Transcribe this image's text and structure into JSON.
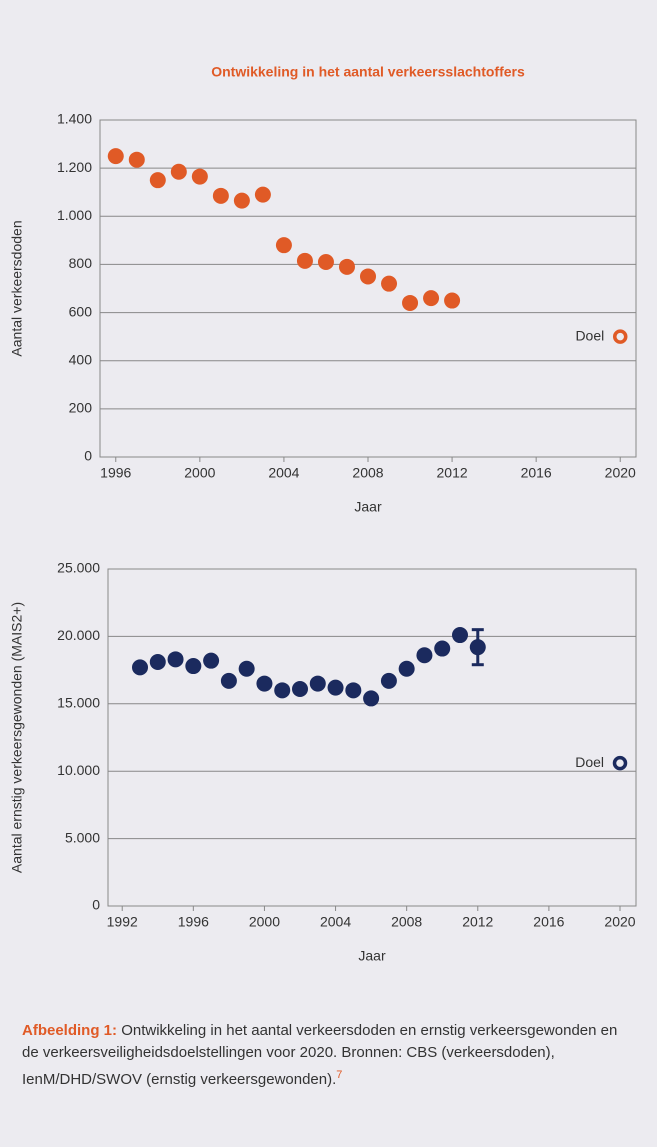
{
  "chart_data": [
    {
      "type": "scatter",
      "title": "Ontwikkeling in het aantal verkeersslachtoffers",
      "ylabel": "Aantal verkeersdoden",
      "xlabel": "Jaar",
      "x": [
        1996,
        1997,
        1998,
        1999,
        2000,
        2001,
        2002,
        2003,
        2004,
        2005,
        2006,
        2007,
        2008,
        2009,
        2010,
        2011,
        2012
      ],
      "values": [
        1250,
        1235,
        1150,
        1185,
        1165,
        1085,
        1065,
        1090,
        880,
        815,
        810,
        790,
        750,
        720,
        640,
        660,
        650
      ],
      "color": "#e05a26",
      "target": {
        "label": "Doel",
        "x": 2020,
        "value": 500
      },
      "xlim": [
        1995.25,
        2020.75
      ],
      "xticks": [
        1996,
        2000,
        2004,
        2008,
        2012,
        2016,
        2020
      ],
      "ylim": [
        0,
        1400
      ],
      "yticks": [
        0,
        200,
        400,
        600,
        800,
        {
          "value": 1000,
          "label": "1.000"
        },
        {
          "value": 1200,
          "label": "1.200"
        },
        {
          "value": 1400,
          "label": "1.400"
        }
      ],
      "grid": true
    },
    {
      "type": "scatter",
      "ylabel": "Aantal ernstig verkeersgewonden (MAIS2+)",
      "xlabel": "Jaar",
      "x": [
        1993,
        1994,
        1995,
        1996,
        1997,
        1998,
        1999,
        2000,
        2001,
        2002,
        2003,
        2004,
        2005,
        2006,
        2007,
        2008,
        2009,
        2010,
        2011,
        2012
      ],
      "values": [
        17700,
        18100,
        18300,
        17800,
        18200,
        16700,
        17600,
        16500,
        16000,
        16100,
        16500,
        16200,
        16000,
        15400,
        16700,
        17600,
        18600,
        19100,
        20100,
        19200
      ],
      "errors": [
        null,
        null,
        null,
        null,
        null,
        null,
        null,
        null,
        null,
        null,
        null,
        null,
        null,
        null,
        null,
        null,
        null,
        null,
        null,
        1300
      ],
      "color": "#1b2a5e",
      "target": {
        "label": "Doel",
        "x": 2020,
        "value": 10600
      },
      "xlim": [
        1991.2,
        2020.9
      ],
      "xticks": [
        1992,
        1996,
        2000,
        2004,
        2008,
        2012,
        2016,
        2020
      ],
      "ylim": [
        0,
        25000
      ],
      "yticks": [
        0,
        {
          "value": 5000,
          "label": "5.000"
        },
        {
          "value": 10000,
          "label": "10.000"
        },
        {
          "value": 15000,
          "label": "15.000"
        },
        {
          "value": 20000,
          "label": "20.000"
        },
        {
          "value": 25000,
          "label": "25.000"
        }
      ],
      "grid": true
    }
  ],
  "caption": {
    "label": "Afbeelding 1:",
    "text": "Ontwikkeling in het aantal verkeersdoden en ernstig verkeersgewonden en de verkeersveiligheidsdoelstellingen voor 2020. Bronnen: CBS (verkeersdoden), IenM/DHD/SWOV (ernstig verkeersgewonden).",
    "note": "7"
  }
}
